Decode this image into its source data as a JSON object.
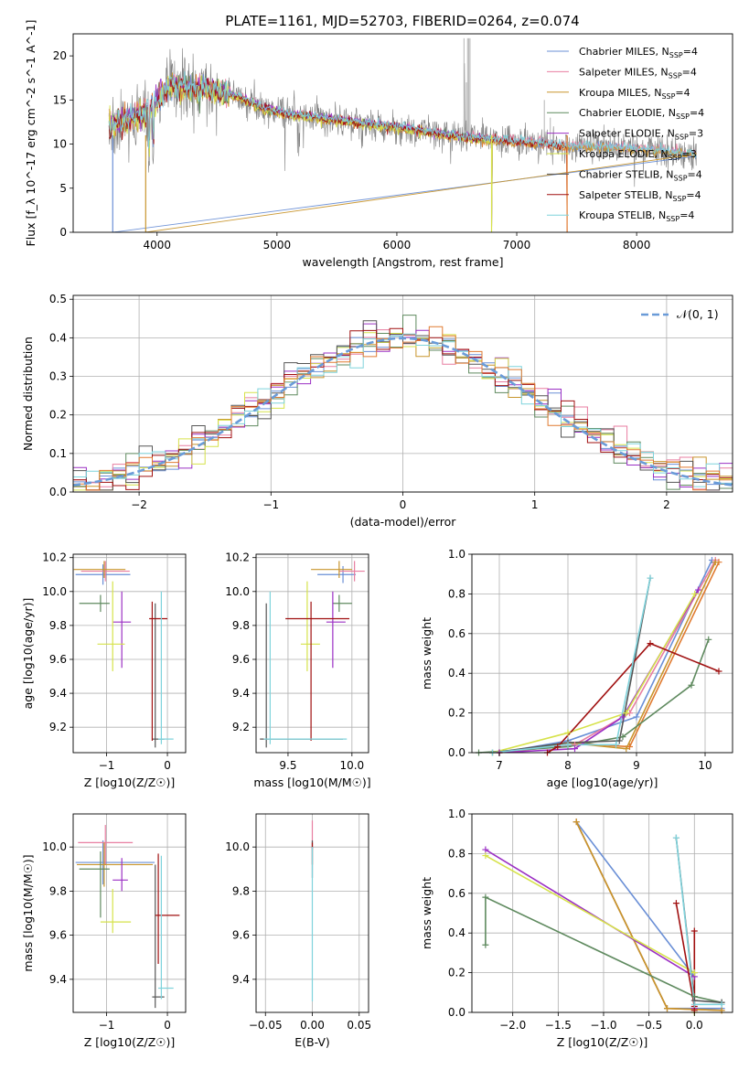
{
  "title": "PLATE=1161, MJD=52703, FIBERID=0264, z=0.074",
  "series_colors": {
    "Chabrier MILES": "#6a8fd6",
    "Salpeter MILES": "#e87ea1",
    "Kroupa MILES": "#c8952c",
    "Chabrier ELODIE": "#5f8a5f",
    "Salpeter ELODIE": "#9b30c4",
    "Kroupa ELODIE": "#d6e24a",
    "Chabrier STELIB": "#555555",
    "Salpeter STELIB": "#a01010",
    "Kroupa STELIB": "#7fd3dc",
    "extra": "#e07a30",
    "observed": "#808080",
    "gauss": "#6a9bd8"
  },
  "chart_data": [
    {
      "id": "spectrum",
      "type": "line",
      "xlabel": "wavelength [Angstrom, rest frame]",
      "ylabel": "Flux [f_λ 10^-17 erg cm^-2 s^-1 A^-1]",
      "xlim": [
        3300,
        8800
      ],
      "ylim": [
        0,
        22.5
      ],
      "xticks": [
        4000,
        5000,
        6000,
        7000,
        8000
      ],
      "yticks": [
        0,
        5,
        10,
        15,
        20
      ],
      "legend_position": "upper-right",
      "legend": [
        {
          "name": "Chabrier MILES",
          "label": "Chabrier MILES, N",
          "sub": "SSP",
          "tail": "=4"
        },
        {
          "name": "Salpeter MILES",
          "label": "Salpeter MILES, N",
          "sub": "SSP",
          "tail": "=4"
        },
        {
          "name": "Kroupa MILES",
          "label": "Kroupa MILES, N",
          "sub": "SSP",
          "tail": "=4"
        },
        {
          "name": "Chabrier ELODIE",
          "label": "Chabrier ELODIE, N",
          "sub": "SSP",
          "tail": "=4"
        },
        {
          "name": "Salpeter ELODIE",
          "label": "Salpeter ELODIE, N",
          "sub": "SSP",
          "tail": "=3"
        },
        {
          "name": "Kroupa ELODIE",
          "label": "Kroupa ELODIE, N",
          "sub": "SSP",
          "tail": "=3"
        },
        {
          "name": "Chabrier STELIB",
          "label": "Chabrier STELIB, N",
          "sub": "SSP",
          "tail": "=4"
        },
        {
          "name": "Salpeter STELIB",
          "label": "Salpeter STELIB, N",
          "sub": "SSP",
          "tail": "=4"
        },
        {
          "name": "Kroupa STELIB",
          "label": "Kroupa STELIB, N",
          "sub": "SSP",
          "tail": "=4"
        }
      ],
      "continuum_knots": [
        [
          3600,
          12.0
        ],
        [
          3900,
          13.5
        ],
        [
          4000,
          15.0
        ],
        [
          4100,
          16.8
        ],
        [
          4300,
          16.3
        ],
        [
          4500,
          16.0
        ],
        [
          4700,
          15.3
        ],
        [
          4900,
          14.0
        ],
        [
          5100,
          13.4
        ],
        [
          5300,
          13.1
        ],
        [
          5500,
          12.7
        ],
        [
          6000,
          11.9
        ],
        [
          6300,
          11.3
        ],
        [
          6600,
          10.7
        ],
        [
          7000,
          10.3
        ],
        [
          7400,
          9.8
        ],
        [
          7800,
          9.6
        ],
        [
          8200,
          9.3
        ],
        [
          8500,
          8.8
        ]
      ]
    },
    {
      "id": "residuals",
      "type": "histogram",
      "xlabel": "(data-model)/error",
      "ylabel": "Normed distribution",
      "xlim": [
        -2.5,
        2.5
      ],
      "ylim": [
        0,
        0.51
      ],
      "xticks": [
        -2,
        -1,
        0,
        1,
        2
      ],
      "yticks": [
        0.0,
        0.1,
        0.2,
        0.3,
        0.4,
        0.5
      ],
      "grid": true,
      "legend_position": "upper-right",
      "legend_label": "𝒩(0, 1)",
      "bin_width": 0.1
    },
    {
      "id": "age-vs-Z",
      "type": "errorbar",
      "xlabel": "Z [log10(Z/Z☉)]",
      "ylabel": "age [log10(age/yr)]",
      "xlim": [
        -1.55,
        0.3
      ],
      "ylim": [
        9.05,
        10.22
      ],
      "xticks": [
        -1,
        0
      ],
      "yticks": [
        9.2,
        9.4,
        9.6,
        9.8,
        10.0,
        10.2
      ],
      "grid": true,
      "points": [
        {
          "series": "Chabrier MILES",
          "x": -1.06,
          "xerr": [
            0.45,
            0.45
          ],
          "y": 10.1,
          "yerr": [
            0.06,
            0.06
          ]
        },
        {
          "series": "Salpeter MILES",
          "x": -1.02,
          "xerr": [
            0.4,
            0.4
          ],
          "y": 10.12,
          "yerr": [
            0.06,
            0.06
          ]
        },
        {
          "series": "Kroupa MILES",
          "x": -1.04,
          "xerr": [
            0.5,
            0.35
          ],
          "y": 10.13,
          "yerr": [
            0.05,
            0.05
          ]
        },
        {
          "series": "Chabrier ELODIE",
          "x": -1.1,
          "xerr": [
            0.35,
            0.15
          ],
          "y": 9.93,
          "yerr": [
            0.05,
            0.05
          ]
        },
        {
          "series": "Salpeter ELODIE",
          "x": -0.75,
          "xerr": [
            0.15,
            0.15
          ],
          "y": 9.82,
          "yerr": [
            0.27,
            0.18
          ]
        },
        {
          "series": "Kroupa ELODIE",
          "x": -0.9,
          "xerr": [
            0.25,
            0.2
          ],
          "y": 9.69,
          "yerr": [
            0.16,
            0.37
          ]
        },
        {
          "series": "Chabrier STELIB",
          "x": -0.2,
          "xerr": [
            0.05,
            0.15
          ],
          "y": 9.13,
          "yerr": [
            0.05,
            0.8
          ]
        },
        {
          "series": "Salpeter STELIB",
          "x": -0.25,
          "xerr": [
            0.05,
            0.25
          ],
          "y": 9.84,
          "yerr": [
            0.72,
            0.1
          ]
        },
        {
          "series": "Kroupa STELIB",
          "x": -0.1,
          "xerr": [
            0.05,
            0.2
          ],
          "y": 9.13,
          "yerr": [
            0.03,
            0.87
          ]
        }
      ]
    },
    {
      "id": "age-vs-mass",
      "type": "errorbar",
      "xlabel": "mass [log10(M/M☉)]",
      "ylabel": "",
      "xlim": [
        9.25,
        10.13
      ],
      "ylim": [
        9.05,
        10.22
      ],
      "xticks": [
        9.5,
        10.0
      ],
      "yticks": [
        9.2,
        9.4,
        9.6,
        9.8,
        10.0,
        10.2
      ],
      "grid": true,
      "points": [
        {
          "series": "Chabrier MILES",
          "x": 9.93,
          "xerr": [
            0.2,
            0.1
          ],
          "y": 10.1,
          "yerr": [
            0.05,
            0.05
          ]
        },
        {
          "series": "Salpeter MILES",
          "x": 10.02,
          "xerr": [
            0.12,
            0.08
          ],
          "y": 10.12,
          "yerr": [
            0.06,
            0.06
          ]
        },
        {
          "series": "Kroupa MILES",
          "x": 9.9,
          "xerr": [
            0.22,
            0.1
          ],
          "y": 10.13,
          "yerr": [
            0.05,
            0.05
          ]
        },
        {
          "series": "Chabrier ELODIE",
          "x": 9.9,
          "xerr": [
            0.05,
            0.1
          ],
          "y": 9.93,
          "yerr": [
            0.05,
            0.05
          ]
        },
        {
          "series": "Salpeter ELODIE",
          "x": 9.85,
          "xerr": [
            0.05,
            0.1
          ],
          "y": 9.82,
          "yerr": [
            0.27,
            0.18
          ]
        },
        {
          "series": "Kroupa ELODIE",
          "x": 9.65,
          "xerr": [
            0.05,
            0.1
          ],
          "y": 9.69,
          "yerr": [
            0.16,
            0.37
          ]
        },
        {
          "series": "Chabrier STELIB",
          "x": 9.33,
          "xerr": [
            0.05,
            0.6
          ],
          "y": 9.13,
          "yerr": [
            0.05,
            0.8
          ]
        },
        {
          "series": "Salpeter STELIB",
          "x": 9.68,
          "xerr": [
            0.2,
            0.3
          ],
          "y": 9.84,
          "yerr": [
            0.72,
            0.1
          ]
        },
        {
          "series": "Kroupa STELIB",
          "x": 9.36,
          "xerr": [
            0.05,
            0.6
          ],
          "y": 9.13,
          "yerr": [
            0.03,
            0.87
          ]
        }
      ]
    },
    {
      "id": "massweight-vs-age",
      "type": "line",
      "xlabel": "age [log10(age/yr)]",
      "ylabel": "mass weight",
      "xlim": [
        6.6,
        10.4
      ],
      "ylim": [
        0,
        1.0
      ],
      "xticks": [
        7,
        8,
        9,
        10
      ],
      "yticks": [
        0.0,
        0.2,
        0.4,
        0.6,
        0.8,
        1.0
      ],
      "grid": true,
      "series": [
        {
          "name": "Chabrier MILES",
          "x": [
            7.0,
            8.0,
            9.0,
            10.1
          ],
          "y": [
            0.0,
            0.06,
            0.18,
            0.97
          ]
        },
        {
          "name": "Salpeter MILES",
          "x": [
            7.0,
            8.1,
            8.9,
            10.15
          ],
          "y": [
            0.0,
            0.04,
            0.2,
            0.97
          ]
        },
        {
          "name": "extra",
          "x": [
            7.0,
            8.0,
            8.9,
            10.2
          ],
          "y": [
            0.0,
            0.05,
            0.03,
            0.96
          ]
        },
        {
          "name": "Kroupa MILES",
          "x": [
            7.0,
            8.0,
            8.85,
            10.15
          ],
          "y": [
            0.0,
            0.05,
            0.02,
            0.96
          ]
        },
        {
          "name": "Chabrier ELODIE",
          "x": [
            6.7,
            8.0,
            8.8,
            9.8,
            10.05
          ],
          "y": [
            0.0,
            0.03,
            0.08,
            0.34,
            0.57
          ]
        },
        {
          "name": "Salpeter ELODIE",
          "x": [
            7.0,
            8.1,
            8.8,
            9.9
          ],
          "y": [
            0.0,
            0.02,
            0.18,
            0.82
          ]
        },
        {
          "name": "Kroupa ELODIE",
          "x": [
            6.9,
            8.0,
            8.85,
            9.85
          ],
          "y": [
            0.0,
            0.1,
            0.2,
            0.8
          ]
        },
        {
          "name": "Chabrier STELIB",
          "x": [
            6.9,
            8.0,
            8.75,
            9.2
          ],
          "y": [
            0.0,
            0.05,
            0.06,
            0.88
          ]
        },
        {
          "name": "Salpeter STELIB",
          "x": [
            7.7,
            7.85,
            9.2,
            10.2
          ],
          "y": [
            0.0,
            0.03,
            0.55,
            0.41
          ]
        },
        {
          "name": "Kroupa STELIB",
          "x": [
            6.9,
            8.0,
            8.7,
            9.2
          ],
          "y": [
            0.0,
            0.04,
            0.04,
            0.88
          ]
        }
      ]
    },
    {
      "id": "mass-vs-Z",
      "type": "errorbar",
      "xlabel": "Z [log10(Z/Z☉)]",
      "ylabel": "mass [log10(M/M☉)]",
      "xlim": [
        -1.55,
        0.3
      ],
      "ylim": [
        9.25,
        10.15
      ],
      "xticks": [
        -1,
        0
      ],
      "yticks": [
        9.4,
        9.6,
        9.8,
        10.0
      ],
      "grid": true,
      "points": [
        {
          "series": "Chabrier MILES",
          "x": -1.06,
          "xerr": [
            0.45,
            0.85
          ],
          "y": 9.93,
          "yerr": [
            0.1,
            0.1
          ]
        },
        {
          "series": "Salpeter MILES",
          "x": -1.02,
          "xerr": [
            0.45,
            0.45
          ],
          "y": 10.02,
          "yerr": [
            0.1,
            0.08
          ]
        },
        {
          "series": "Kroupa MILES",
          "x": -1.04,
          "xerr": [
            0.45,
            0.8
          ],
          "y": 9.92,
          "yerr": [
            0.1,
            0.1
          ]
        },
        {
          "series": "Chabrier ELODIE",
          "x": -1.1,
          "xerr": [
            0.35,
            0.15
          ],
          "y": 9.9,
          "yerr": [
            0.22,
            0.08
          ]
        },
        {
          "series": "Salpeter ELODIE",
          "x": -0.75,
          "xerr": [
            0.15,
            0.1
          ],
          "y": 9.85,
          "yerr": [
            0.05,
            0.1
          ]
        },
        {
          "series": "Kroupa ELODIE",
          "x": -0.9,
          "xerr": [
            0.2,
            0.3
          ],
          "y": 9.66,
          "yerr": [
            0.05,
            0.15
          ]
        },
        {
          "series": "Chabrier STELIB",
          "x": -0.2,
          "xerr": [
            0.05,
            0.15
          ],
          "y": 9.32,
          "yerr": [
            0.05,
            0.6
          ]
        },
        {
          "series": "Salpeter STELIB",
          "x": -0.15,
          "xerr": [
            0.05,
            0.35
          ],
          "y": 9.69,
          "yerr": [
            0.22,
            0.28
          ]
        },
        {
          "series": "Kroupa STELIB",
          "x": -0.1,
          "xerr": [
            0.05,
            0.2
          ],
          "y": 9.36,
          "yerr": [
            0.05,
            0.6
          ]
        }
      ]
    },
    {
      "id": "mass-vs-ebv",
      "type": "errorbar",
      "xlabel": "E(B-V)",
      "ylabel": "",
      "xlim": [
        -0.06,
        0.06
      ],
      "ylim": [
        9.25,
        10.15
      ],
      "xticks": [
        -0.05,
        0.0,
        0.05
      ],
      "xtick_labels": [
        "−0.05",
        "0.00",
        "0.05"
      ],
      "yticks": [
        9.4,
        9.6,
        9.8,
        10.0
      ],
      "grid": true,
      "points": [
        {
          "series": "Salpeter MILES",
          "x": 0.0,
          "xerr": [
            0,
            0
          ],
          "y": 10.02,
          "yerr": [
            0.03,
            0.1
          ]
        },
        {
          "series": "Chabrier STELIB",
          "x": 0.0,
          "xerr": [
            0,
            0
          ],
          "y": 9.96,
          "yerr": [
            0.1,
            0.07
          ]
        },
        {
          "series": "Salpeter STELIB",
          "x": 0.0,
          "xerr": [
            0,
            0
          ],
          "y": 9.97,
          "yerr": [
            0.05,
            0.05
          ]
        },
        {
          "series": "Kroupa STELIB",
          "x": 0.0,
          "xerr": [
            0,
            0
          ],
          "y": 9.9,
          "yerr": [
            0.6,
            0.1
          ]
        }
      ]
    },
    {
      "id": "massweight-vs-Z",
      "type": "line",
      "xlabel": "Z [log10(Z/Z☉)]",
      "ylabel": "mass weight",
      "xlim": [
        -2.45,
        0.42
      ],
      "ylim": [
        0,
        1.0
      ],
      "xticks": [
        -2.0,
        -1.5,
        -1.0,
        -0.5,
        0.0
      ],
      "yticks": [
        0.0,
        0.2,
        0.4,
        0.6,
        0.8,
        1.0
      ],
      "grid": true,
      "series": [
        {
          "name": "Chabrier MILES",
          "x": [
            0.0,
            0.0,
            -1.3,
            -0.3,
            0.3
          ],
          "y": [
            0.2,
            0.18,
            0.96,
            0.02,
            0.02
          ]
        },
        {
          "name": "extra",
          "x": [
            -1.3,
            -0.3,
            0.3
          ],
          "y": [
            0.96,
            0.02,
            0.01
          ]
        },
        {
          "name": "Kroupa MILES",
          "x": [
            -1.3,
            -0.3,
            0.3
          ],
          "y": [
            0.96,
            0.02,
            0.01
          ]
        },
        {
          "name": "Chabrier ELODIE",
          "x": [
            -2.3,
            -2.3,
            0.0,
            0.3
          ],
          "y": [
            0.34,
            0.58,
            0.08,
            0.05
          ]
        },
        {
          "name": "Salpeter ELODIE",
          "x": [
            -2.3,
            0.0,
            0.0
          ],
          "y": [
            0.82,
            0.18,
            0.02
          ]
        },
        {
          "name": "Kroupa ELODIE",
          "x": [
            -2.3,
            0.0,
            0.0
          ],
          "y": [
            0.79,
            0.2,
            0.0
          ]
        },
        {
          "name": "Chabrier STELIB",
          "x": [
            -0.2,
            0.0,
            0.3
          ],
          "y": [
            0.88,
            0.06,
            0.05
          ]
        },
        {
          "name": "Salpeter STELIB",
          "x": [
            -0.2,
            0.0,
            0.0,
            0.0
          ],
          "y": [
            0.55,
            0.03,
            0.41,
            0.01
          ]
        },
        {
          "name": "Kroupa STELIB",
          "x": [
            -0.2,
            0.0,
            0.3
          ],
          "y": [
            0.88,
            0.04,
            0.04
          ]
        }
      ]
    }
  ]
}
